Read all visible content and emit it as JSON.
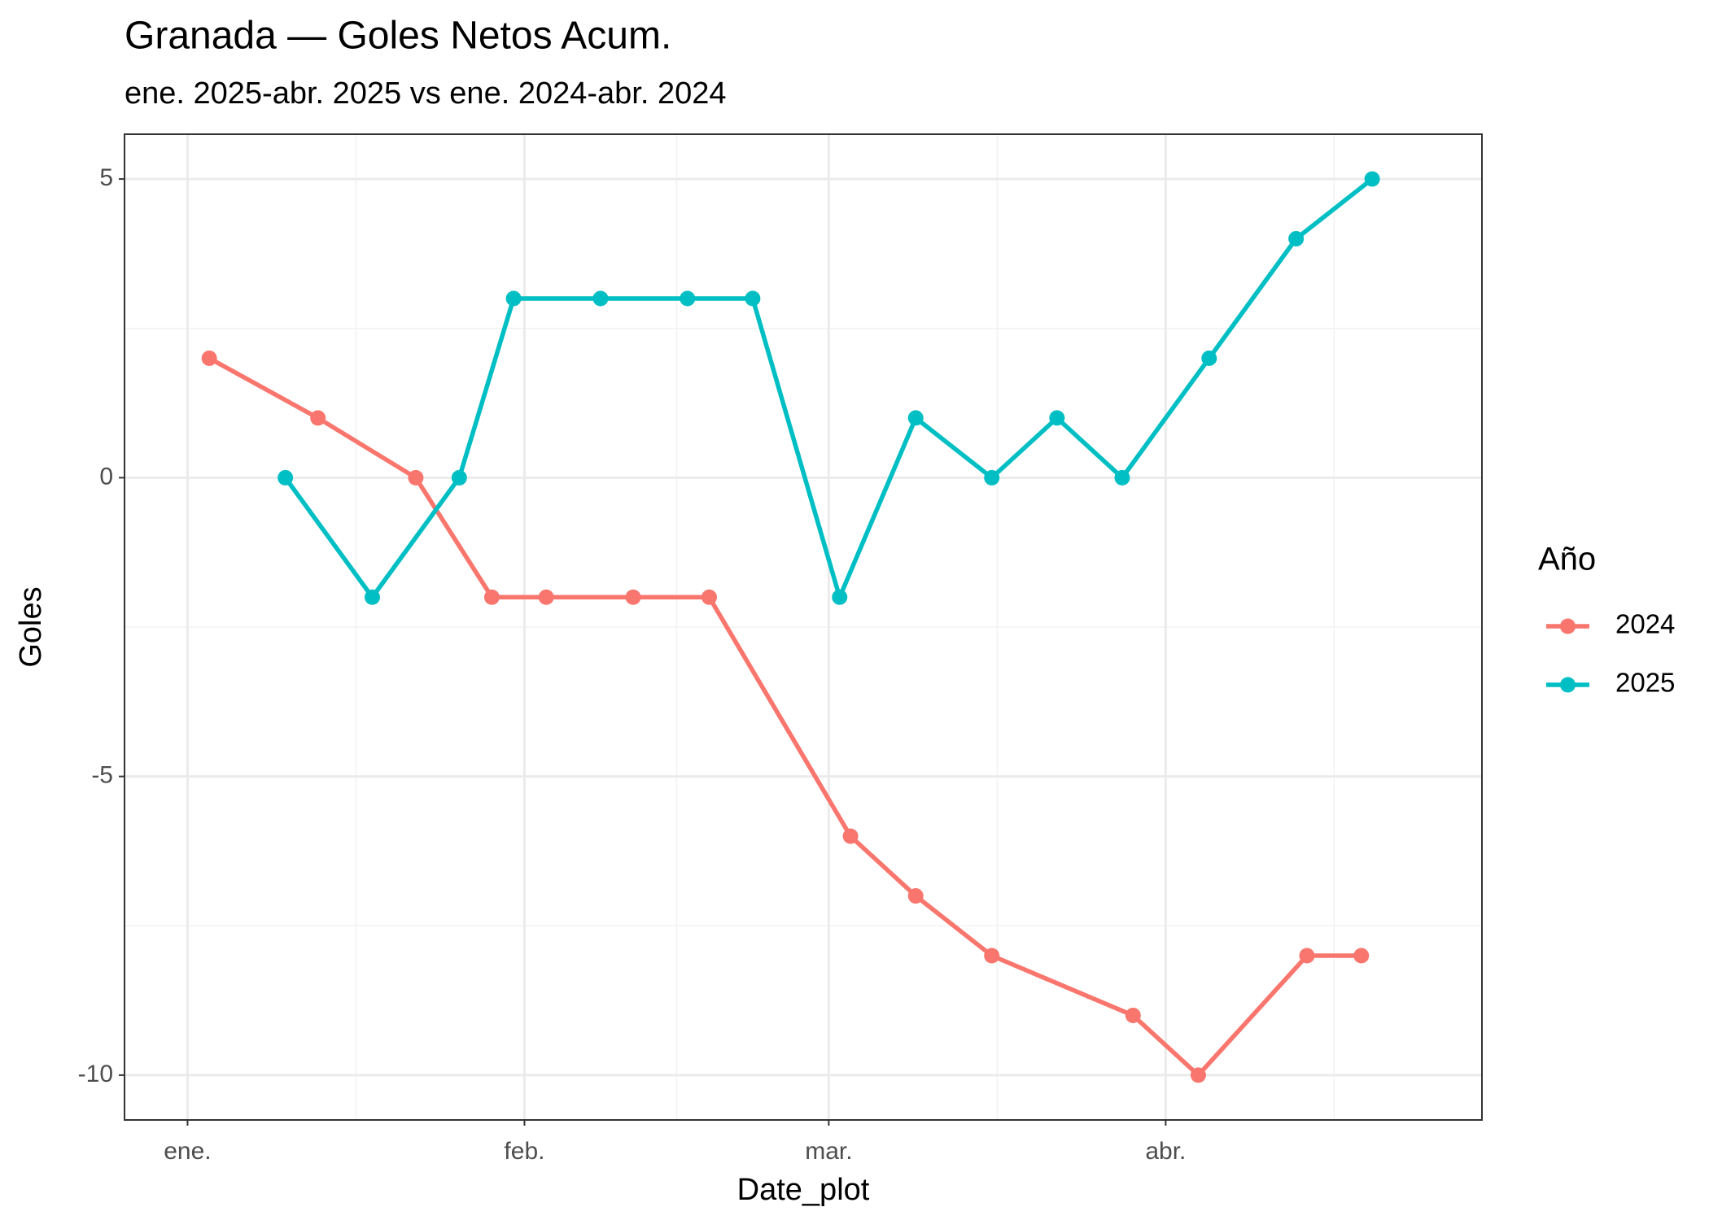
{
  "chart_data": {
    "type": "line",
    "title": "Granada — Goles Netos Acum.",
    "subtitle": "ene. 2025-abr. 2025 vs ene. 2024-abr. 2024",
    "x_label": "Date_plot",
    "y_label": "Goles",
    "legend_title": "Año",
    "legend_position": "right",
    "grid": true,
    "xlim": [
      -5.8,
      119.1
    ],
    "xticks": [
      {
        "value": 0,
        "label": "ene."
      },
      {
        "value": 31,
        "label": "feb."
      },
      {
        "value": 59,
        "label": "mar."
      },
      {
        "value": 90,
        "label": "abr."
      }
    ],
    "xminor": [
      15.5,
      45,
      74.5,
      105.5
    ],
    "ylim": [
      -10.75,
      5.75
    ],
    "yticks": [
      -10,
      -5,
      0,
      5
    ],
    "yminor": [
      -7.5,
      -2.5,
      2.5
    ],
    "series": [
      {
        "name": "2024",
        "color": "#F8766D",
        "x": [
          2,
          12,
          21,
          28,
          33,
          41,
          48,
          61,
          67,
          74,
          87,
          93,
          103,
          108
        ],
        "values": [
          2,
          1,
          0,
          -2,
          -2,
          -2,
          -2,
          -6,
          -7,
          -8,
          -9,
          -10,
          -8,
          -8
        ]
      },
      {
        "name": "2025",
        "color": "#00BFC4",
        "x": [
          9,
          17,
          25,
          30,
          38,
          46,
          52,
          60,
          67,
          74,
          80,
          86,
          94,
          102,
          109
        ],
        "values": [
          0,
          -2,
          0,
          3,
          3,
          3,
          3,
          -2,
          1,
          0,
          1,
          0,
          2,
          4,
          5
        ]
      }
    ]
  }
}
